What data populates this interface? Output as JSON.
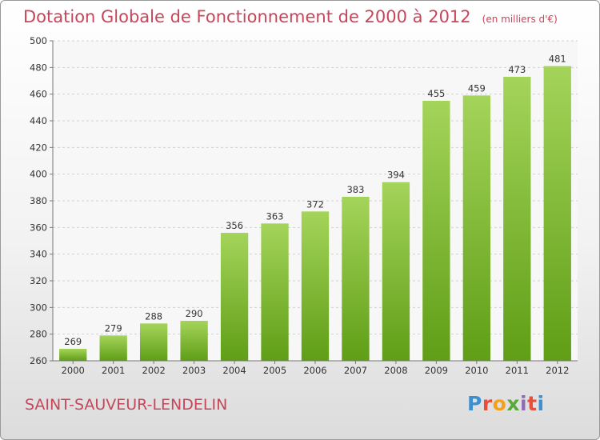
{
  "title": "Dotation Globale de Fonctionnement de 2000 à 2012",
  "subtitle": "(en milliers d'€)",
  "commune": "SAINT-SAUVEUR-LENDELIN",
  "logo": {
    "letters": [
      "P",
      "r",
      "o",
      "x",
      "i",
      "t",
      "i"
    ],
    "colors": [
      "#3d8fd1",
      "#e94e3c",
      "#f4a01c",
      "#5aa83b",
      "#8e6bb3",
      "#e94e3c",
      "#3d8fd1"
    ]
  },
  "colors": {
    "bar_top": "#a4d45a",
    "bar_bottom": "#5f9e16",
    "title": "#c8455a"
  },
  "chart_data": {
    "type": "bar",
    "title": "Dotation Globale de Fonctionnement de 2000 à 2012",
    "subtitle": "(en milliers d'€)",
    "categories": [
      "2000",
      "2001",
      "2002",
      "2003",
      "2004",
      "2005",
      "2006",
      "2007",
      "2008",
      "2009",
      "2010",
      "2011",
      "2012"
    ],
    "values": [
      269,
      279,
      288,
      290,
      356,
      363,
      372,
      383,
      394,
      455,
      459,
      473,
      481
    ],
    "ylim": [
      260,
      500
    ],
    "yticks": [
      260,
      280,
      300,
      320,
      340,
      360,
      380,
      400,
      420,
      440,
      460,
      480,
      500
    ],
    "grid": true,
    "legend": "none"
  }
}
